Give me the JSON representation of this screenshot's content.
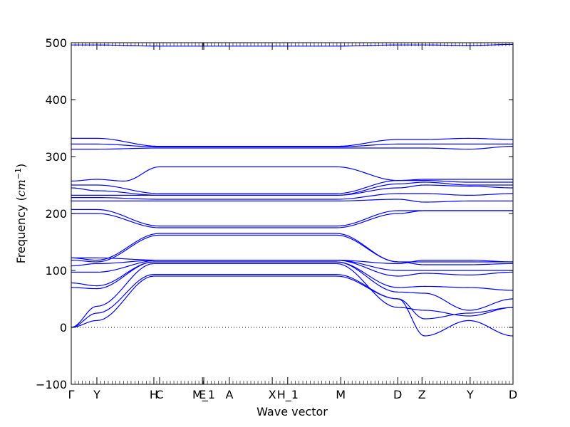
{
  "chart_data": {
    "type": "line",
    "xlabel": "Wave vector",
    "ylabel_prefix": "Frequency (",
    "ylabel_unit": "cm",
    "ylabel_exp": "−1",
    "ylabel_suffix": ")",
    "ylim": [
      -100,
      500
    ],
    "yticks": [
      -100,
      0,
      100,
      200,
      300,
      400,
      500
    ],
    "xlim": [
      0,
      1
    ],
    "xticks": [
      {
        "label": "Γ",
        "x": 0.0
      },
      {
        "label": "Y",
        "x": 0.058
      },
      {
        "label": "H",
        "x": 0.187
      },
      {
        "label": "C",
        "x": 0.2
      },
      {
        "label": "E",
        "x": 0.297
      },
      {
        "label": "M_1",
        "x": 0.3
      },
      {
        "label": "A",
        "x": 0.358
      },
      {
        "label": "X",
        "x": 0.455
      },
      {
        "label": "H_1",
        "x": 0.49
      },
      {
        "label": "M",
        "x": 0.61
      },
      {
        "label": "D",
        "x": 0.739
      },
      {
        "label": "Z",
        "x": 0.794
      },
      {
        "label": "Y",
        "x": 0.903
      },
      {
        "label": "D",
        "x": 1.0
      }
    ],
    "zero_line": true,
    "series_color": "#0000ff",
    "series": [
      {
        "x": [
          0,
          0.058,
          0.187,
          0.6,
          0.74,
          0.8,
          0.9,
          1
        ],
        "y": [
          0,
          12,
          90,
          90,
          50,
          -15,
          12,
          -15
        ]
      },
      {
        "x": [
          0,
          0.058,
          0.187,
          0.6,
          0.74,
          0.8,
          0.9,
          1
        ],
        "y": [
          0,
          25,
          93,
          93,
          50,
          15,
          25,
          35
        ]
      },
      {
        "x": [
          0,
          0.058,
          0.187,
          0.6,
          0.74,
          0.8,
          0.9,
          1
        ],
        "y": [
          0,
          37,
          112,
          112,
          35,
          30,
          20,
          35
        ]
      },
      {
        "x": [
          0,
          0.058,
          0.187,
          0.6,
          0.74,
          0.8,
          0.9,
          1
        ],
        "y": [
          70,
          68,
          115,
          115,
          62,
          60,
          30,
          50
        ]
      },
      {
        "x": [
          0,
          0.058,
          0.187,
          0.6,
          0.74,
          0.8,
          0.9,
          1
        ],
        "y": [
          78,
          73,
          115,
          115,
          70,
          72,
          70,
          65
        ]
      },
      {
        "x": [
          0,
          0.058,
          0.2,
          0.6,
          0.74,
          0.8,
          0.9,
          1
        ],
        "y": [
          97,
          97,
          118,
          118,
          90,
          95,
          92,
          97
        ]
      },
      {
        "x": [
          0,
          0.058,
          0.2,
          0.6,
          0.74,
          0.8,
          0.9,
          1
        ],
        "y": [
          108,
          112,
          118,
          118,
          100,
          100,
          100,
          100
        ]
      },
      {
        "x": [
          0,
          0.058,
          0.2,
          0.6,
          0.74,
          0.8,
          0.9,
          1
        ],
        "y": [
          118,
          115,
          162,
          162,
          115,
          110,
          110,
          112
        ]
      },
      {
        "x": [
          0,
          0.058,
          0.2,
          0.6,
          0.74,
          0.8,
          0.9,
          1
        ],
        "y": [
          122,
          118,
          165,
          165,
          115,
          115,
          115,
          115
        ]
      },
      {
        "x": [
          0,
          0.058,
          0.2,
          0.6,
          0.74,
          0.8,
          0.9,
          1
        ],
        "y": [
          122,
          122,
          118,
          118,
          112,
          118,
          118,
          115
        ]
      },
      {
        "x": [
          0,
          0.058,
          0.2,
          0.6,
          0.74,
          0.8,
          0.9,
          1
        ],
        "y": [
          200,
          200,
          175,
          175,
          200,
          205,
          205,
          205
        ]
      },
      {
        "x": [
          0,
          0.058,
          0.2,
          0.6,
          0.74,
          0.8,
          0.9,
          1
        ],
        "y": [
          207,
          207,
          178,
          178,
          205,
          205,
          205,
          205
        ]
      },
      {
        "x": [
          0,
          0.058,
          0.2,
          0.6,
          0.74,
          0.8,
          0.9,
          1
        ],
        "y": [
          222,
          222,
          222,
          222,
          225,
          220,
          222,
          222
        ]
      },
      {
        "x": [
          0,
          0.058,
          0.2,
          0.6,
          0.74,
          0.8,
          0.9,
          1
        ],
        "y": [
          228,
          228,
          225,
          225,
          235,
          235,
          232,
          235
        ]
      },
      {
        "x": [
          0,
          0.058,
          0.2,
          0.6,
          0.74,
          0.8,
          0.9,
          1
        ],
        "y": [
          232,
          232,
          232,
          232,
          245,
          250,
          248,
          245
        ]
      },
      {
        "x": [
          0,
          0.058,
          0.2,
          0.6,
          0.74,
          0.8,
          0.9,
          1
        ],
        "y": [
          245,
          240,
          232,
          232,
          252,
          255,
          250,
          250
        ]
      },
      {
        "x": [
          0,
          0.058,
          0.2,
          0.6,
          0.74,
          0.8,
          0.9,
          1
        ],
        "y": [
          250,
          250,
          235,
          235,
          258,
          258,
          255,
          255
        ]
      },
      {
        "x": [
          0,
          0.058,
          0.12,
          0.2,
          0.6,
          0.74,
          0.8,
          0.9,
          1
        ],
        "y": [
          257,
          260,
          257,
          282,
          282,
          258,
          260,
          260,
          260
        ]
      },
      {
        "x": [
          0,
          0.058,
          0.2,
          0.6,
          0.74,
          0.8,
          0.9,
          1
        ],
        "y": [
          313,
          313,
          315,
          315,
          315,
          315,
          313,
          318
        ]
      },
      {
        "x": [
          0,
          0.058,
          0.2,
          0.6,
          0.74,
          0.8,
          0.9,
          1
        ],
        "y": [
          322,
          322,
          317,
          317,
          322,
          322,
          322,
          322
        ]
      },
      {
        "x": [
          0,
          0.058,
          0.2,
          0.6,
          0.74,
          0.8,
          0.9,
          1
        ],
        "y": [
          332,
          332,
          318,
          318,
          330,
          330,
          332,
          330
        ]
      },
      {
        "x": [
          0,
          0.058,
          0.2,
          0.6,
          0.74,
          0.8,
          0.9,
          1
        ],
        "y": [
          496,
          496,
          494,
          494,
          496,
          496,
          495,
          497
        ]
      }
    ]
  }
}
